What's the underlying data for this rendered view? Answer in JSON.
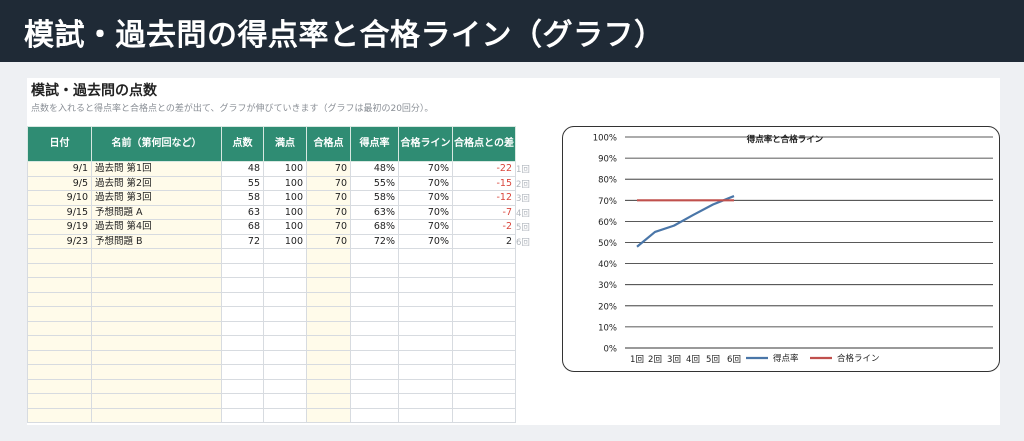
{
  "header": {
    "title": "模試・過去問の得点率と合格ライン（グラフ）"
  },
  "sheet": {
    "title": "模試・過去問の点数",
    "subtitle": "点数を入れると得点率と合格点との差が出て、グラフが伸びていきます（グラフは最初の20回分）。",
    "columns": [
      "日付",
      "名前（第何回など）",
      "点数",
      "満点",
      "合格点",
      "得点率",
      "合格ライン",
      "合格点との差"
    ],
    "rows": [
      {
        "date": "9/1",
        "name": "過去問 第1回",
        "score": "48",
        "full": "100",
        "pass": "70",
        "rate": "48%",
        "line": "70%",
        "diff": "-22"
      },
      {
        "date": "9/5",
        "name": "過去問 第2回",
        "score": "55",
        "full": "100",
        "pass": "70",
        "rate": "55%",
        "line": "70%",
        "diff": "-15"
      },
      {
        "date": "9/10",
        "name": "過去問 第3回",
        "score": "58",
        "full": "100",
        "pass": "70",
        "rate": "58%",
        "line": "70%",
        "diff": "-12"
      },
      {
        "date": "9/15",
        "name": "予想問題 A",
        "score": "63",
        "full": "100",
        "pass": "70",
        "rate": "63%",
        "line": "70%",
        "diff": "-7"
      },
      {
        "date": "9/19",
        "name": "過去問 第4回",
        "score": "68",
        "full": "100",
        "pass": "70",
        "rate": "68%",
        "line": "70%",
        "diff": "-2"
      },
      {
        "date": "9/23",
        "name": "予想問題 B",
        "score": "72",
        "full": "100",
        "pass": "70",
        "rate": "72%",
        "line": "70%",
        "diff": "2"
      }
    ],
    "row_labels": [
      "1回",
      "2回",
      "3回",
      "4回",
      "5回",
      "6回"
    ]
  },
  "chart_data": {
    "type": "line",
    "title": "得点率と合格ライン",
    "categories": [
      "1回",
      "2回",
      "3回",
      "4回",
      "5回",
      "6回"
    ],
    "series": [
      {
        "name": "得点率",
        "values": [
          0.48,
          0.55,
          0.58,
          0.63,
          0.68,
          0.72
        ],
        "color": "#4a76a8"
      },
      {
        "name": "合格ライン",
        "values": [
          0.7,
          0.7,
          0.7,
          0.7,
          0.7,
          0.7
        ],
        "color": "#c0504d"
      }
    ],
    "yticks": [
      "0%",
      "10%",
      "20%",
      "30%",
      "40%",
      "50%",
      "60%",
      "70%",
      "80%",
      "90%",
      "100%"
    ],
    "ylim": [
      0,
      1
    ],
    "grid": true,
    "legend": "bottom"
  }
}
